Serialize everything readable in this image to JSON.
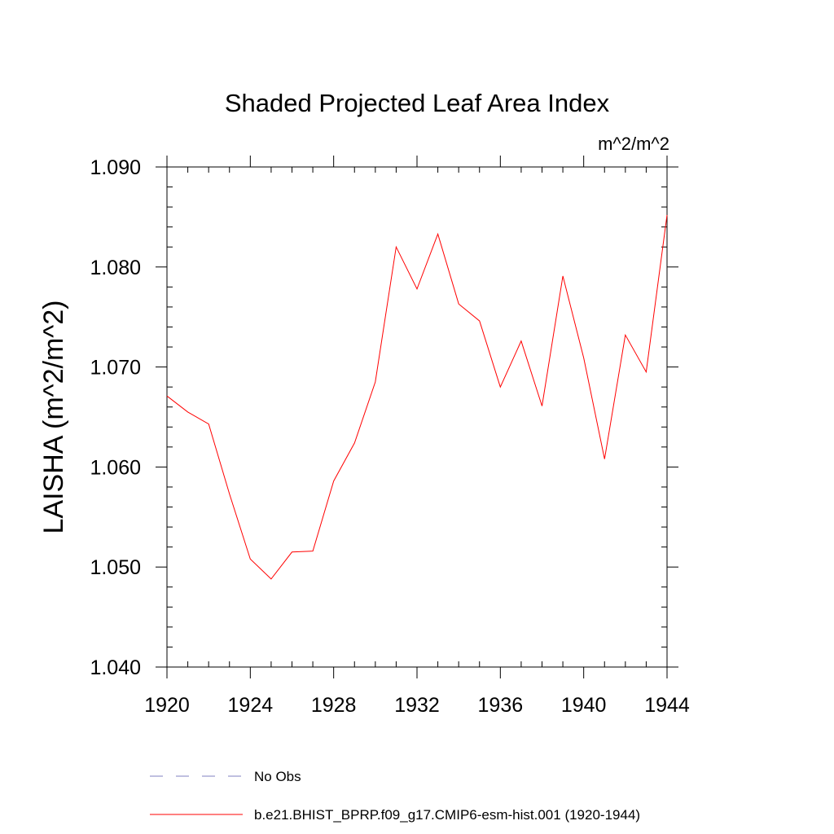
{
  "chart_data": {
    "type": "line",
    "title": "Shaded Projected Leaf Area Index",
    "units": "m^2/m^2",
    "ylabel": "LAISHA  (m^2/m^2)",
    "xlabel": "",
    "xlim": [
      1920,
      1944
    ],
    "ylim": [
      1.04,
      1.09
    ],
    "xticks": [
      1920,
      1924,
      1928,
      1932,
      1936,
      1940,
      1944
    ],
    "xtick_labels": [
      "1920",
      "1924",
      "1928",
      "1932",
      "1936",
      "1940",
      "1944"
    ],
    "yticks": [
      1.04,
      1.05,
      1.06,
      1.07,
      1.08,
      1.09
    ],
    "ytick_labels": [
      "1.040",
      "1.050",
      "1.060",
      "1.070",
      "1.080",
      "1.090"
    ],
    "x_minor_step": 1,
    "y_minor_step": 0.002,
    "series": [
      {
        "name": "b.e21.BHIST_BPRP.f09_g17.CMIP6-esm-hist.001 (1920-1944)",
        "color": "#ff0000",
        "style": "solid",
        "x": [
          1920,
          1921,
          1922,
          1923,
          1924,
          1925,
          1926,
          1927,
          1928,
          1929,
          1930,
          1931,
          1932,
          1933,
          1934,
          1935,
          1936,
          1937,
          1938,
          1939,
          1940,
          1941,
          1942,
          1943,
          1944
        ],
        "values": [
          1.0671,
          1.0655,
          1.0643,
          1.0573,
          1.0508,
          1.0488,
          1.0515,
          1.0516,
          1.0586,
          1.0624,
          1.0685,
          1.082,
          1.0778,
          1.0833,
          1.0763,
          1.0746,
          1.068,
          1.0726,
          1.0661,
          1.0791,
          1.0709,
          1.0608,
          1.0732,
          1.0695,
          1.0852
        ]
      }
    ],
    "legend": [
      {
        "label": "No Obs",
        "color": "#8080c0",
        "style": "dashed"
      },
      {
        "label": "b.e21.BHIST_BPRP.f09_g17.CMIP6-esm-hist.001 (1920-1944)",
        "color": "#ff0000",
        "style": "solid"
      }
    ]
  }
}
